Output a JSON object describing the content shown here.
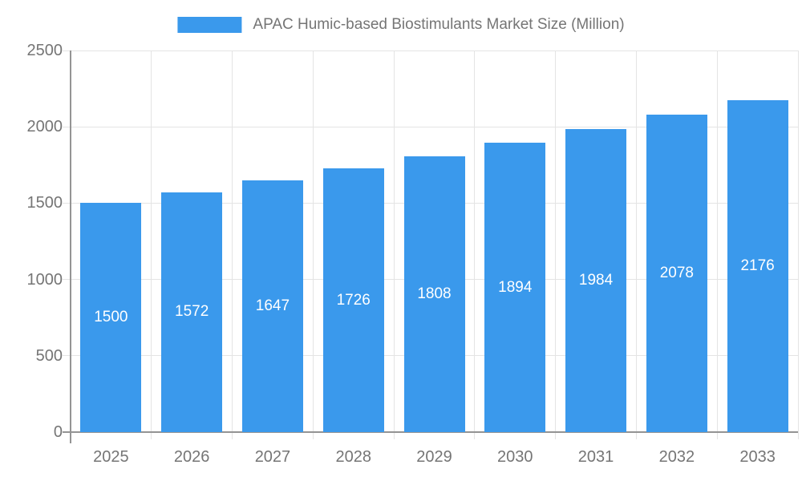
{
  "chart_data": {
    "type": "bar",
    "legend": "APAC Humic-based Biostimulants Market Size (Million)",
    "legend_position": "top",
    "categories": [
      "2025",
      "2026",
      "2027",
      "2028",
      "2029",
      "2030",
      "2031",
      "2032",
      "2033"
    ],
    "values": [
      1500,
      1572,
      1647,
      1726,
      1808,
      1894,
      1984,
      2078,
      2176
    ],
    "ylim": [
      0,
      2500
    ],
    "yticks": [
      0,
      500,
      1000,
      1500,
      2000,
      2500
    ],
    "grid": true,
    "colors": {
      "bar": "#3a99ec",
      "grid": "#e4e4e4",
      "axis": "#949494",
      "tick_text": "#757575",
      "value_label": "#ffffff"
    }
  }
}
